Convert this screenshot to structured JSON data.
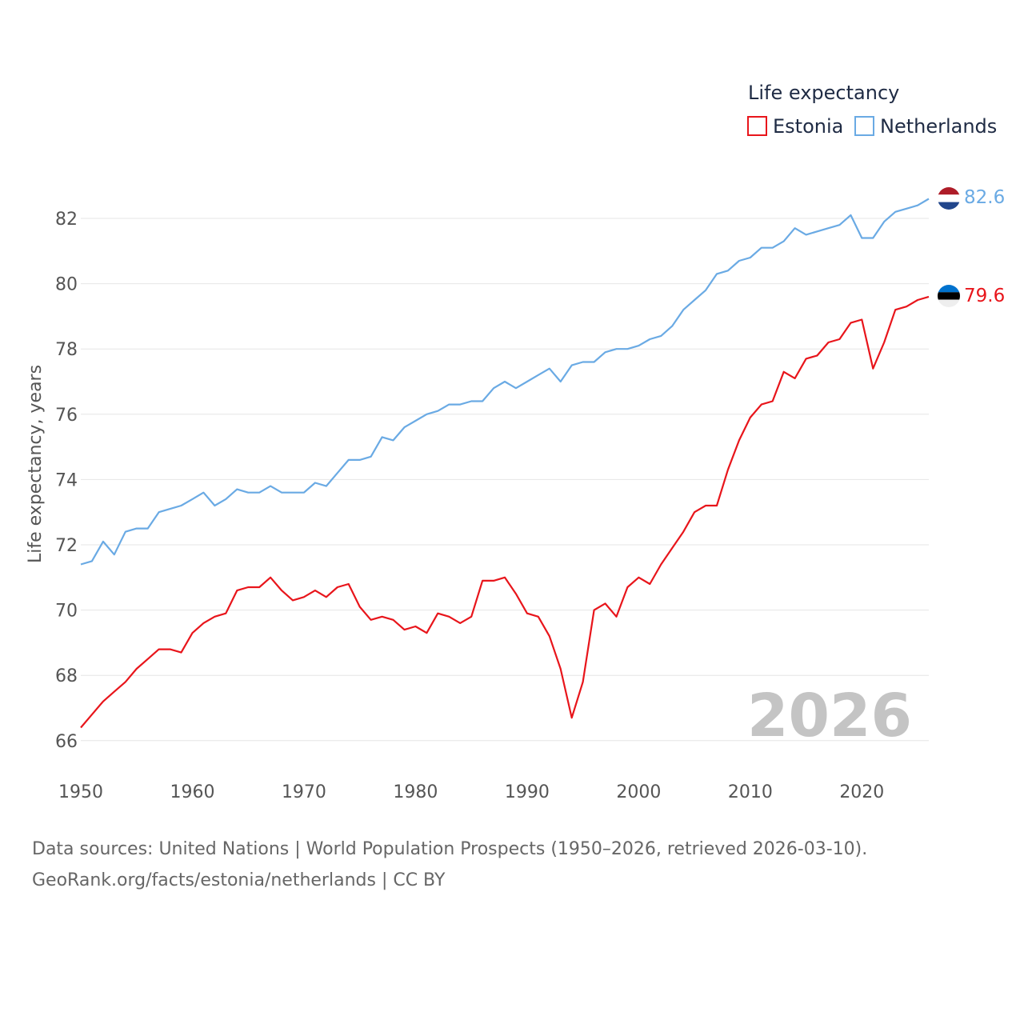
{
  "chart_data": {
    "type": "line",
    "legend_title": "Life expectancy",
    "ylabel": "Life expectancy, years",
    "xlim": [
      1950,
      2026
    ],
    "ylim": [
      65,
      83.5
    ],
    "x_ticks": [
      1950,
      1960,
      1970,
      1980,
      1990,
      2000,
      2010,
      2020
    ],
    "y_ticks": [
      66,
      68,
      70,
      72,
      74,
      76,
      78,
      80,
      82
    ],
    "year_label": "2026",
    "x": [
      1950,
      1951,
      1952,
      1953,
      1954,
      1955,
      1956,
      1957,
      1958,
      1959,
      1960,
      1961,
      1962,
      1963,
      1964,
      1965,
      1966,
      1967,
      1968,
      1969,
      1970,
      1971,
      1972,
      1973,
      1974,
      1975,
      1976,
      1977,
      1978,
      1979,
      1980,
      1981,
      1982,
      1983,
      1984,
      1985,
      1986,
      1987,
      1988,
      1989,
      1990,
      1991,
      1992,
      1993,
      1994,
      1995,
      1996,
      1997,
      1998,
      1999,
      2000,
      2001,
      2002,
      2003,
      2004,
      2005,
      2006,
      2007,
      2008,
      2009,
      2010,
      2011,
      2012,
      2013,
      2014,
      2015,
      2016,
      2017,
      2018,
      2019,
      2020,
      2021,
      2022,
      2023,
      2024,
      2025,
      2026
    ],
    "series": [
      {
        "name": "Estonia",
        "color": "#e8151b",
        "end_label": "79.6",
        "flag": "estonia-flag",
        "values": [
          66.4,
          66.8,
          67.2,
          67.5,
          67.8,
          68.2,
          68.5,
          68.8,
          68.8,
          68.7,
          69.3,
          69.6,
          69.8,
          69.9,
          70.6,
          70.7,
          70.7,
          71.0,
          70.6,
          70.3,
          70.4,
          70.6,
          70.4,
          70.7,
          70.8,
          70.1,
          69.7,
          69.8,
          69.7,
          69.4,
          69.5,
          69.3,
          69.9,
          69.8,
          69.6,
          69.8,
          70.9,
          70.9,
          71.0,
          70.5,
          69.9,
          69.8,
          69.2,
          68.2,
          66.7,
          67.8,
          70.0,
          70.2,
          69.8,
          70.7,
          71.0,
          70.8,
          71.4,
          71.9,
          72.4,
          73.0,
          73.2,
          73.2,
          74.3,
          75.2,
          75.9,
          76.3,
          76.4,
          77.3,
          77.1,
          77.7,
          77.8,
          78.2,
          78.3,
          78.8,
          78.9,
          77.4,
          78.2,
          79.2,
          79.3,
          79.5,
          79.6
        ]
      },
      {
        "name": "Netherlands",
        "color": "#6aaae4",
        "end_label": "82.6",
        "flag": "netherlands-flag",
        "values": [
          71.4,
          71.5,
          72.1,
          71.7,
          72.4,
          72.5,
          72.5,
          73.0,
          73.1,
          73.2,
          73.4,
          73.6,
          73.2,
          73.4,
          73.7,
          73.6,
          73.6,
          73.8,
          73.6,
          73.6,
          73.6,
          73.9,
          73.8,
          74.2,
          74.6,
          74.6,
          74.7,
          75.3,
          75.2,
          75.6,
          75.8,
          76.0,
          76.1,
          76.3,
          76.3,
          76.4,
          76.4,
          76.8,
          77.0,
          76.8,
          77.0,
          77.2,
          77.4,
          77.0,
          77.5,
          77.6,
          77.6,
          77.9,
          78.0,
          78.0,
          78.1,
          78.3,
          78.4,
          78.7,
          79.2,
          79.5,
          79.8,
          80.3,
          80.4,
          80.7,
          80.8,
          81.1,
          81.1,
          81.3,
          81.7,
          81.5,
          81.6,
          81.7,
          81.8,
          82.1,
          81.4,
          81.4,
          81.9,
          82.2,
          82.3,
          82.4,
          82.6
        ]
      }
    ]
  },
  "source": {
    "line1": "Data sources: United Nations | World Population Prospects (1950–2026, retrieved 2026-03-10).",
    "line2": "GeoRank.org/facts/estonia/netherlands | CC BY"
  }
}
